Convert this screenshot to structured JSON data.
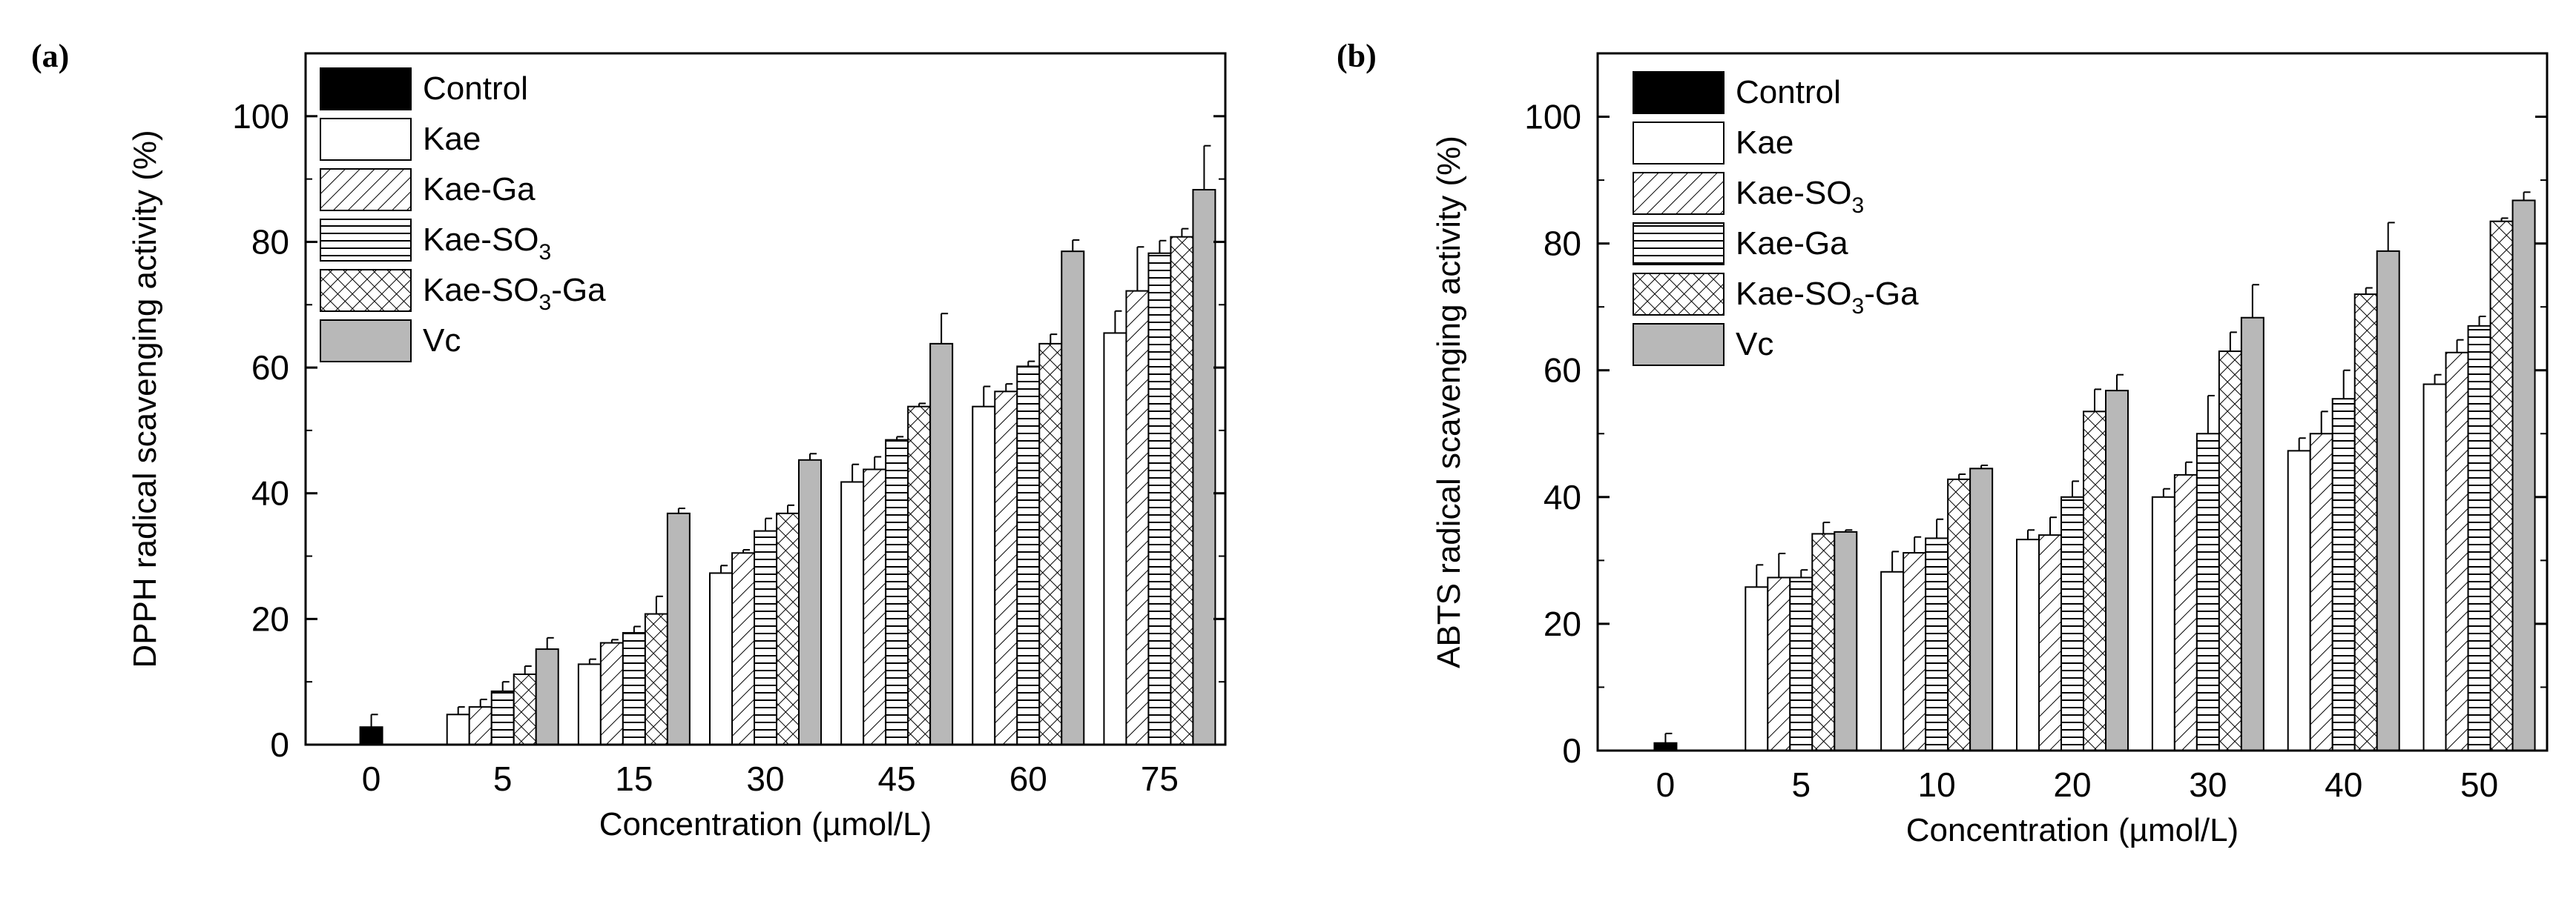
{
  "colors": {
    "black": "#000000",
    "white": "#ffffff",
    "gray": "#b8b8b8"
  },
  "chart_data": [
    {
      "panel_label": "(a)",
      "type": "bar",
      "ylabel": "DPPH radical scavenging activity (%)",
      "xlabel": "Concentration (µmol/L)",
      "ylim": [
        0,
        110
      ],
      "yticks": [
        "0",
        "20",
        "40",
        "60",
        "80",
        "100"
      ],
      "categories": [
        "0",
        "5",
        "15",
        "30",
        "45",
        "60",
        "75"
      ],
      "legend_placement": "top-left",
      "series": [
        {
          "name": "Control",
          "sub": "",
          "post": "",
          "pattern": "solid-black",
          "values": [
            2.8,
            null,
            null,
            null,
            null,
            null,
            null
          ],
          "errors": [
            2.0,
            null,
            null,
            null,
            null,
            null,
            null
          ]
        },
        {
          "name": "Kae",
          "sub": "",
          "post": "",
          "pattern": "white",
          "values": [
            null,
            4.8,
            12.8,
            27.3,
            41.8,
            53.8,
            65.5
          ],
          "errors": [
            null,
            1.2,
            0.8,
            1.2,
            2.8,
            3.2,
            3.5
          ]
        },
        {
          "name": "Kae-Ga",
          "sub": "",
          "post": "",
          "pattern": "diagonal",
          "values": [
            null,
            6.0,
            16.2,
            30.5,
            43.8,
            56.2,
            72.2
          ],
          "errors": [
            null,
            1.2,
            0.5,
            0.5,
            2.0,
            1.2,
            7.0
          ]
        },
        {
          "name": "Kae-SO",
          "sub": "3",
          "post": "",
          "pattern": "horizontal",
          "values": [
            null,
            8.5,
            17.8,
            34.0,
            48.5,
            60.2,
            78.2
          ],
          "errors": [
            null,
            1.5,
            1.0,
            2.0,
            0.5,
            0.8,
            2.0
          ]
        },
        {
          "name": "Kae-SO",
          "sub": "3",
          "post": "-Ga",
          "pattern": "crosshatch",
          "values": [
            null,
            11.2,
            20.8,
            36.8,
            53.8,
            63.8,
            80.8
          ],
          "errors": [
            null,
            1.3,
            2.8,
            1.3,
            0.5,
            1.5,
            1.3
          ]
        },
        {
          "name": "Vc",
          "sub": "",
          "post": "",
          "pattern": "solid-gray",
          "values": [
            null,
            15.2,
            36.8,
            45.3,
            63.8,
            78.5,
            88.3
          ],
          "errors": [
            null,
            1.8,
            0.8,
            1.0,
            4.8,
            1.8,
            7.0
          ]
        }
      ]
    },
    {
      "panel_label": "(b)",
      "type": "bar",
      "ylabel": "ABTS radical scavenging activity (%)",
      "xlabel": "Concentration (µmol/L)",
      "ylim": [
        0,
        110
      ],
      "yticks": [
        "0",
        "20",
        "40",
        "60",
        "80",
        "100"
      ],
      "categories": [
        "0",
        "5",
        "10",
        "20",
        "30",
        "40",
        "50"
      ],
      "legend_placement": "top-left",
      "series": [
        {
          "name": "Control",
          "sub": "",
          "post": "",
          "pattern": "solid-black",
          "values": [
            1.2,
            null,
            null,
            null,
            null,
            null,
            null
          ],
          "errors": [
            1.5,
            null,
            null,
            null,
            null,
            null,
            null
          ]
        },
        {
          "name": "Kae",
          "sub": "",
          "post": "",
          "pattern": "white",
          "values": [
            null,
            25.8,
            28.2,
            33.3,
            40.0,
            47.3,
            57.8
          ],
          "errors": [
            null,
            3.5,
            3.2,
            1.5,
            1.3,
            2.0,
            1.5
          ]
        },
        {
          "name": "Kae-SO",
          "sub": "3",
          "post": "",
          "pattern": "diagonal",
          "values": [
            null,
            27.3,
            31.2,
            34.0,
            43.5,
            50.0,
            62.8
          ],
          "errors": [
            null,
            3.8,
            2.5,
            2.8,
            2.0,
            3.5,
            2.0
          ]
        },
        {
          "name": "Kae-Ga",
          "sub": "",
          "post": "",
          "pattern": "horizontal",
          "values": [
            null,
            27.3,
            33.5,
            40.0,
            50.0,
            55.5,
            67.0
          ],
          "errors": [
            null,
            1.2,
            3.0,
            2.5,
            6.0,
            4.5,
            1.5
          ]
        },
        {
          "name": "Kae-SO",
          "sub": "3",
          "post": "-Ga",
          "pattern": "crosshatch",
          "values": [
            null,
            34.2,
            42.8,
            53.5,
            63.0,
            72.0,
            83.5
          ],
          "errors": [
            null,
            1.8,
            0.8,
            3.5,
            3.0,
            1.0,
            0.5
          ]
        },
        {
          "name": "Vc",
          "sub": "",
          "post": "",
          "pattern": "solid-gray",
          "values": [
            null,
            34.5,
            44.5,
            56.8,
            68.3,
            78.8,
            86.8
          ],
          "errors": [
            null,
            0.3,
            0.5,
            2.5,
            5.2,
            4.5,
            1.3
          ]
        }
      ]
    }
  ]
}
